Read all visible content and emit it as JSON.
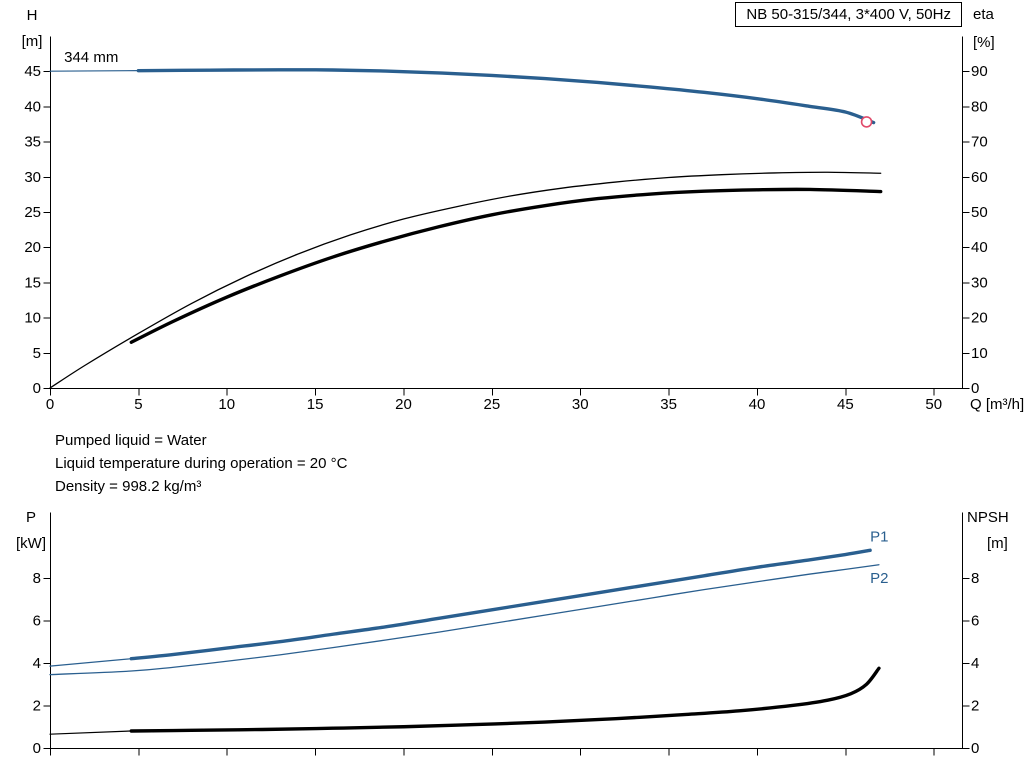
{
  "info_lines": [
    "Pumped liquid = Water",
    "Liquid temperature during operation = 20 °C",
    "Density = 998.2 kg/m³"
  ],
  "chart_data": [
    {
      "id": "qh-eta-chart",
      "type": "line",
      "title": "NB 50-315/344, 3*400 V, 50Hz",
      "xlabel": "Q [m³/h]",
      "xlim": [
        0,
        51.6
      ],
      "x_ticks": [
        0,
        5,
        10,
        15,
        20,
        25,
        30,
        35,
        40,
        45,
        50
      ],
      "x_tick_labels": true,
      "grid": false,
      "left_axis": {
        "title": "H",
        "unit": "[m]",
        "lim": [
          0,
          50
        ],
        "ticks": [
          0,
          5,
          10,
          15,
          20,
          25,
          30,
          35,
          40,
          45
        ]
      },
      "right_axis": {
        "title": "eta",
        "unit": "[%]",
        "lim": [
          0,
          100
        ],
        "ticks": [
          0,
          10,
          20,
          30,
          40,
          50,
          60,
          70,
          80,
          90
        ]
      },
      "annotations": [
        {
          "text": "344 mm",
          "x": 0.8,
          "y": 47.0,
          "axis": "left",
          "color": "#000000"
        }
      ],
      "series": [
        {
          "name": "head-curve-lead",
          "axis": "left",
          "color": "#2a5f8f",
          "width": 1.2,
          "points": [
            [
              0,
              45.0
            ],
            [
              5,
              45.08
            ]
          ]
        },
        {
          "name": "head-curve-344mm",
          "axis": "left",
          "color": "#2a5f8f",
          "width": 3.4,
          "points": [
            [
              5,
              45.08
            ],
            [
              9,
              45.15
            ],
            [
              13,
              45.2
            ],
            [
              16,
              45.17
            ],
            [
              19,
              45.02
            ],
            [
              22,
              44.75
            ],
            [
              25,
              44.4
            ],
            [
              28,
              43.95
            ],
            [
              31,
              43.4
            ],
            [
              34,
              42.75
            ],
            [
              37,
              42.0
            ],
            [
              40,
              41.1
            ],
            [
              43,
              40.0
            ],
            [
              45,
              39.2
            ],
            [
              46.6,
              37.7
            ]
          ]
        },
        {
          "name": "efficiency-pump",
          "axis": "right",
          "color": "#000000",
          "width": 1.3,
          "points": [
            [
              0,
              0
            ],
            [
              2,
              6.5
            ],
            [
              5,
              15.5
            ],
            [
              8,
              24
            ],
            [
              11,
              31.5
            ],
            [
              14,
              38
            ],
            [
              17,
              43.5
            ],
            [
              20,
              48
            ],
            [
              23,
              51.5
            ],
            [
              26,
              54.5
            ],
            [
              29,
              56.8
            ],
            [
              32,
              58.5
            ],
            [
              35,
              59.8
            ],
            [
              38,
              60.6
            ],
            [
              41,
              61.1
            ],
            [
              44,
              61.3
            ],
            [
              47,
              61.0
            ]
          ]
        },
        {
          "name": "efficiency-pump-motor",
          "axis": "right",
          "color": "#000000",
          "width": 3.4,
          "points": [
            [
              4.6,
              13
            ],
            [
              7,
              19
            ],
            [
              10,
              25.8
            ],
            [
              13,
              31.8
            ],
            [
              16,
              37.2
            ],
            [
              19,
              41.8
            ],
            [
              22,
              45.8
            ],
            [
              25,
              49.2
            ],
            [
              28,
              51.8
            ],
            [
              31,
              53.8
            ],
            [
              34,
              55.1
            ],
            [
              37,
              55.9
            ],
            [
              40,
              56.3
            ],
            [
              43,
              56.4
            ],
            [
              47,
              55.8
            ]
          ]
        }
      ],
      "end_marker": {
        "x": 46.2,
        "y": 37.8,
        "color": "#e04a6a",
        "radius": 5
      }
    },
    {
      "id": "power-npsh-chart",
      "type": "line",
      "title": "",
      "xlabel": "",
      "xlim": [
        0,
        51.6
      ],
      "x_ticks": [
        0,
        5,
        10,
        15,
        20,
        25,
        30,
        35,
        40,
        45,
        50
      ],
      "x_tick_labels": false,
      "grid": false,
      "left_axis": {
        "title": "P",
        "unit": "[kW]",
        "lim": [
          0,
          11.1
        ],
        "ticks": [
          0,
          2,
          4,
          6,
          8
        ]
      },
      "right_axis": {
        "title": "NPSH",
        "unit": "[m]",
        "lim": [
          0,
          11.1
        ],
        "ticks": [
          0,
          2,
          4,
          6,
          8
        ]
      },
      "annotations": [
        {
          "text": "P1",
          "x": 46.4,
          "y": 9.95,
          "axis": "left",
          "color": "#2a5f8f"
        },
        {
          "text": "P2",
          "x": 46.4,
          "y": 8.0,
          "axis": "left",
          "color": "#2a5f8f"
        }
      ],
      "series": [
        {
          "name": "power-p1-lead",
          "axis": "left",
          "color": "#2a5f8f",
          "width": 1.2,
          "points": [
            [
              0,
              3.85
            ],
            [
              4.6,
              4.2
            ]
          ]
        },
        {
          "name": "power-p1",
          "axis": "left",
          "color": "#2a5f8f",
          "width": 3.4,
          "points": [
            [
              4.6,
              4.2
            ],
            [
              7,
              4.4
            ],
            [
              10,
              4.7
            ],
            [
              13,
              5.0
            ],
            [
              16,
              5.35
            ],
            [
              19,
              5.7
            ],
            [
              22,
              6.1
            ],
            [
              25,
              6.5
            ],
            [
              28,
              6.9
            ],
            [
              31,
              7.3
            ],
            [
              34,
              7.7
            ],
            [
              37,
              8.1
            ],
            [
              40,
              8.5
            ],
            [
              43,
              8.85
            ],
            [
              45,
              9.1
            ],
            [
              46.4,
              9.3
            ]
          ]
        },
        {
          "name": "power-p2",
          "axis": "left",
          "color": "#2a5f8f",
          "width": 1.3,
          "points": [
            [
              0,
              3.45
            ],
            [
              4.6,
              3.62
            ],
            [
              7,
              3.8
            ],
            [
              10,
              4.08
            ],
            [
              13,
              4.38
            ],
            [
              16,
              4.72
            ],
            [
              19,
              5.08
            ],
            [
              22,
              5.45
            ],
            [
              25,
              5.85
            ],
            [
              28,
              6.25
            ],
            [
              31,
              6.65
            ],
            [
              34,
              7.05
            ],
            [
              37,
              7.45
            ],
            [
              40,
              7.82
            ],
            [
              43,
              8.18
            ],
            [
              45,
              8.4
            ],
            [
              46.9,
              8.62
            ]
          ]
        },
        {
          "name": "npsh-lead",
          "axis": "right",
          "color": "#000000",
          "width": 1.2,
          "points": [
            [
              0,
              0.65
            ],
            [
              4.6,
              0.8
            ]
          ]
        },
        {
          "name": "npsh-curve",
          "axis": "right",
          "color": "#000000",
          "width": 3.4,
          "points": [
            [
              4.6,
              0.8
            ],
            [
              8,
              0.83
            ],
            [
              12,
              0.87
            ],
            [
              16,
              0.93
            ],
            [
              20,
              1.0
            ],
            [
              24,
              1.1
            ],
            [
              28,
              1.22
            ],
            [
              32,
              1.38
            ],
            [
              36,
              1.58
            ],
            [
              39,
              1.75
            ],
            [
              42,
              2.0
            ],
            [
              44,
              2.25
            ],
            [
              45.3,
              2.55
            ],
            [
              46.2,
              3.0
            ],
            [
              46.9,
              3.75
            ]
          ]
        }
      ]
    }
  ]
}
